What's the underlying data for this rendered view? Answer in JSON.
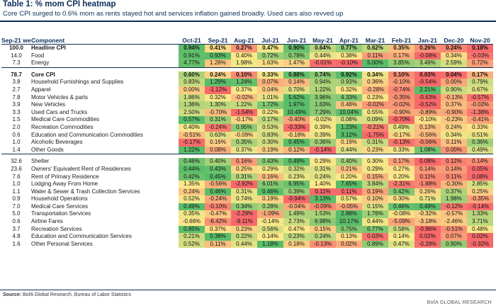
{
  "title": "Table 1: % mom CPI heatmap",
  "subtitle": "Core CPI surged to 0.6% mom as rents stayed hot and services inflation gained broadly. Used cars also revved up",
  "headers": {
    "weight": "Sep-21 weight",
    "component": "Component",
    "months": [
      "Oct-21",
      "Sep-21",
      "Aug-21",
      "Jul-21",
      "Jun-21",
      "May-21",
      "Apr-21",
      "Mar-21",
      "Feb-21",
      "Jan-21",
      "Dec-20",
      "Nov-20"
    ]
  },
  "rows_a": [
    {
      "weight": "100.0",
      "name": "Headline CPI",
      "bold": true,
      "indent": 0,
      "values": [
        "0.94%",
        "0.41%",
        "0.27%",
        "0.47%",
        "0.90%",
        "0.64%",
        "0.77%",
        "0.62%",
        "0.35%",
        "0.26%",
        "0.24%",
        "0.18%"
      ]
    },
    {
      "weight": "14.0",
      "name": "Food",
      "bold": false,
      "indent": 1,
      "values": [
        "0.91%",
        "0.93%",
        "0.40%",
        "0.72%",
        "0.78%",
        "0.44%",
        "0.38%",
        "0.11%",
        "0.17%",
        "-0.08%",
        "0.34%",
        "-0.03%"
      ]
    },
    {
      "weight": "7.3",
      "name": "Energy",
      "bold": false,
      "indent": 1,
      "values": [
        "4.77%",
        "1.28%",
        "1.98%",
        "1.63%",
        "1.47%",
        "-0.01%",
        "-0.10%",
        "5.00%",
        "3.85%",
        "3.49%",
        "2.59%",
        "0.72%"
      ]
    }
  ],
  "rows_b": [
    {
      "weight": "78.7",
      "name": "Core CPI",
      "bold": true,
      "indent": 0,
      "values": [
        "0.60%",
        "0.24%",
        "0.10%",
        "0.33%",
        "0.88%",
        "0.74%",
        "0.92%",
        "0.34%",
        "0.10%",
        "0.03%",
        "0.04%",
        "0.17%"
      ]
    },
    {
      "weight": "3.8",
      "name": "Household Furnishings and Supplies",
      "bold": false,
      "indent": 0,
      "values": [
        "0.83%",
        "1.29%",
        "1.24%",
        "0.07%",
        "0.14%",
        "0.94%",
        "0.93%",
        "0.36%",
        "-0.10%",
        "-0.54%",
        "0.00%",
        "0.79%"
      ]
    },
    {
      "weight": "2.7",
      "name": "Apparel",
      "bold": false,
      "indent": 0,
      "values": [
        "0.00%",
        "-1.12%",
        "0.37%",
        "0.04%",
        "0.70%",
        "1.22%",
        "0.32%",
        "-0.28%",
        "-0.74%",
        "2.21%",
        "0.90%",
        "0.67%"
      ]
    },
    {
      "weight": "7.8",
      "name": "Motor Vehicles & parts",
      "bold": false,
      "indent": 0,
      "values": [
        "1.86%",
        "0.32%",
        "-0.02%",
        "1.01%",
        "5.62%",
        "3.96%",
        "4.33%",
        "0.23%",
        "-0.35%",
        "-0.63%",
        "-0.13%",
        "-0.57%"
      ]
    },
    {
      "weight": "3.9",
      "name": "New Vehicles",
      "bold": false,
      "indent": 1,
      "values": [
        "1.36%",
        "1.30%",
        "1.22%",
        "1.72%",
        "1.97%",
        "1.63%",
        "0.48%",
        "-0.02%",
        "-0.02%",
        "-0.52%",
        "0.37%",
        "-0.02%"
      ]
    },
    {
      "weight": "3.3",
      "name": "Used Cars and Trucks",
      "bold": false,
      "indent": 1,
      "values": [
        "2.50%",
        "-0.70%",
        "-1.54%",
        "0.22%",
        "10.49%",
        "7.29%",
        "10.04%",
        "0.55%",
        "-0.90%",
        "-0.89%",
        "-0.90%",
        "-1.38%"
      ]
    },
    {
      "weight": "1.5",
      "name": "Medical Care Commodities",
      "bold": false,
      "indent": 0,
      "values": [
        "0.57%",
        "0.31%",
        "-0.17%",
        "0.17%",
        "-0.40%",
        "-0.02%",
        "0.08%",
        "0.09%",
        "-0.70%",
        "-0.10%",
        "-0.23%",
        "-0.41%"
      ]
    },
    {
      "weight": "2.0",
      "name": "Recreation Commodities",
      "bold": false,
      "indent": 0,
      "values": [
        "0.40%",
        "-0.24%",
        "0.95%",
        "0.53%",
        "-0.33%",
        "0.39%",
        "1.23%",
        "-0.21%",
        "0.49%",
        "0.13%",
        "0.24%",
        "0.33%"
      ]
    },
    {
      "weight": "0.6",
      "name": "Education and Communication Commodities",
      "bold": false,
      "indent": 0,
      "values": [
        "-0.51%",
        "0.63%",
        "-0.09%",
        "0.83%",
        "-0.18%",
        "0.39%",
        "3.12%",
        "-1.75%",
        "-0.17%",
        "-0.56%",
        "0.34%",
        "0.51%"
      ]
    },
    {
      "weight": "1.0",
      "name": "Alcoholic Beverages",
      "bold": false,
      "indent": 0,
      "values": [
        "-0.17%",
        "0.16%",
        "0.35%",
        "0.30%",
        "0.45%",
        "0.36%",
        "0.19%",
        "0.31%",
        "-0.13%",
        "-0.06%",
        "0.11%",
        "0.36%"
      ]
    },
    {
      "weight": "1.4",
      "name": "Other Goods",
      "bold": false,
      "indent": 0,
      "values": [
        "1.22%",
        "0.08%",
        "0.37%",
        "0.19%",
        "0.12%",
        "-0.14%",
        "0.44%",
        "0.23%",
        "0.33%",
        "1.08%",
        "0.00%",
        "0.49%"
      ]
    }
  ],
  "rows_c": [
    {
      "weight": "32.6",
      "name": "Shelter",
      "bold": false,
      "indent": 0,
      "values": [
        "0.46%",
        "0.40%",
        "0.16%",
        "0.43%",
        "0.49%",
        "0.29%",
        "0.40%",
        "0.30%",
        "0.17%",
        "0.08%",
        "0.12%",
        "0.14%"
      ]
    },
    {
      "weight": "23.6",
      "name": "Owners' Equivalent Rent of Residences",
      "bold": false,
      "indent": 1,
      "values": [
        "0.44%",
        "0.43%",
        "0.25%",
        "0.29%",
        "0.32%",
        "0.31%",
        "0.21%",
        "0.29%",
        "0.27%",
        "0.14%",
        "0.14%",
        "0.05%"
      ]
    },
    {
      "weight": "7.6",
      "name": "Rent of Primary Residence",
      "bold": false,
      "indent": 2,
      "values": [
        "0.42%",
        "0.45%",
        "0.31%",
        "0.16%",
        "0.23%",
        "0.24%",
        "0.20%",
        "0.15%",
        "0.20%",
        "0.11%",
        "0.11%",
        "0.08%"
      ]
    },
    {
      "weight": "1.0",
      "name": "Lodging Away From Home",
      "bold": false,
      "indent": 2,
      "values": [
        "1.35%",
        "-0.56%",
        "-2.92%",
        "6.01%",
        "6.95%",
        "1.40%",
        "7.65%",
        "3.84%",
        "-2.31%",
        "-1.88%",
        "-0.30%",
        "2.85%"
      ]
    },
    {
      "weight": "1.1",
      "name": "Water & Sewer & Trash Collection Services",
      "bold": false,
      "indent": 0,
      "values": [
        "0.24%",
        "0.46%",
        "0.31%",
        "0.46%",
        "0.39%",
        "0.11%",
        "0.11%",
        "0.19%",
        "0.42%",
        "0.26%",
        "0.37%",
        "0.25%"
      ]
    },
    {
      "weight": "0.9",
      "name": "Household Operations",
      "bold": false,
      "indent": 0,
      "values": [
        "0.52%",
        "-0.24%",
        "0.74%",
        "0.19%",
        "-0.94%",
        "3.13%",
        "0.57%",
        "0.10%",
        "0.30%",
        "0.71%",
        "1.98%",
        "-0.35%"
      ]
    },
    {
      "weight": "7.0",
      "name": "Medical Care Services",
      "bold": false,
      "indent": 0,
      "values": [
        "0.49%",
        "-0.10%",
        "0.34%",
        "0.28%",
        "-0.04%",
        "-0.09%",
        "-0.05%",
        "0.15%",
        "0.46%",
        "0.49%",
        "-0.12%",
        "-0.14%"
      ]
    },
    {
      "weight": "5.0",
      "name": "Transportation Services",
      "bold": false,
      "indent": 0,
      "values": [
        "0.35%",
        "-0.47%",
        "-2.29%",
        "-1.09%",
        "1.49%",
        "1.53%",
        "2.88%",
        "1.76%",
        "-0.08%",
        "-0.32%",
        "-0.57%",
        "1.33%"
      ]
    },
    {
      "weight": "0.6",
      "name": "Airline Fares",
      "bold": false,
      "indent": 1,
      "values": [
        "-0.66%",
        "-6.42%",
        "-9.11%",
        "-0.14%",
        "2.73%",
        "6.98%",
        "10.17%",
        "0.44%",
        "-5.09%",
        "-3.18%",
        "-2.46%",
        "3.71%"
      ]
    },
    {
      "weight": "3.7",
      "name": "Recreation Services",
      "bold": false,
      "indent": 0,
      "values": [
        "0.85%",
        "0.37%",
        "0.23%",
        "0.56%",
        "0.47%",
        "0.15%",
        "0.75%",
        "0.77%",
        "0.58%",
        "-0.96%",
        "-0.51%",
        "0.48%"
      ]
    },
    {
      "weight": "4.8",
      "name": "Education and Communication Services",
      "bold": false,
      "indent": 0,
      "values": [
        "0.21%",
        "0.38%",
        "0.22%",
        "0.14%",
        "0.23%",
        "0.24%",
        "0.13%",
        "0.03%",
        "0.14%",
        "0.02%",
        "0.07%",
        "0.02%"
      ]
    },
    {
      "weight": "1.6",
      "name": "Other Personal Services",
      "bold": false,
      "indent": 0,
      "values": [
        "0.52%",
        "0.11%",
        "0.44%",
        "1.18%",
        "0.18%",
        "-0.13%",
        "0.02%",
        "0.89%",
        "0.47%",
        "-0.28%",
        "0.90%",
        "-0.32%"
      ]
    }
  ],
  "source_label": "Source:",
  "source_text": "BofA Global Research, Bureau of Labor Statistics",
  "brand": "BofA GLOBAL RESEARCH",
  "colors": {
    "green": "#5bbd6a",
    "yellow": "#fce98a",
    "red": "#f8696b",
    "header": "#0b2e59"
  }
}
